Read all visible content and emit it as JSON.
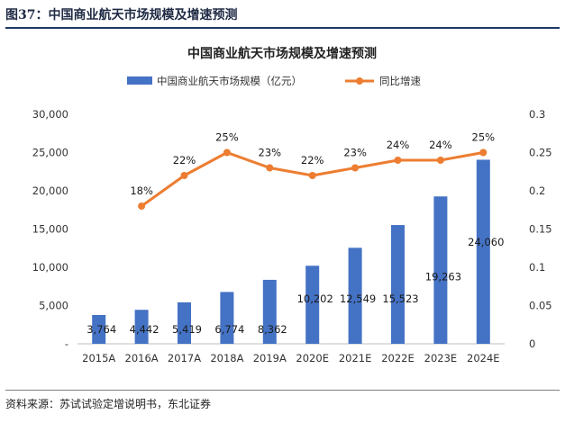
{
  "figure": {
    "label": "图37：中国商业航天市场规模及增速预测",
    "source": "资料来源：苏试试验定增说明书，东北证券"
  },
  "colors": {
    "bar": "#4472c4",
    "line": "#ed7d31",
    "rule": "#1f3864"
  },
  "chart_data": {
    "type": "bar",
    "title": "中国商业航天市场规模及增速预测",
    "categories": [
      "2015A",
      "2016A",
      "2017A",
      "2018A",
      "2019A",
      "2020E",
      "2021E",
      "2022E",
      "2023E",
      "2024E"
    ],
    "series": [
      {
        "name": "中国商业航天市场规模（亿元）",
        "type": "bar",
        "axis": "left",
        "values": [
          3764,
          4442,
          5419,
          6774,
          8362,
          10202,
          12549,
          15523,
          19263,
          24060
        ],
        "labels": [
          "3,764",
          "4,442",
          "5,419",
          "6,774",
          "8,362",
          "10,202",
          "12,549",
          "15,523",
          "19,263",
          "24,060"
        ]
      },
      {
        "name": "同比增速",
        "type": "line",
        "axis": "right",
        "values": [
          null,
          0.18,
          0.22,
          0.25,
          0.23,
          0.22,
          0.23,
          0.24,
          0.24,
          0.25
        ],
        "labels": [
          "",
          "18%",
          "22%",
          "25%",
          "23%",
          "22%",
          "23%",
          "24%",
          "24%",
          "25%"
        ]
      }
    ],
    "ylim": [
      0,
      30000
    ],
    "y2lim": [
      0,
      0.3
    ],
    "y_ticks": [
      "-",
      "5,000",
      "10,000",
      "15,000",
      "20,000",
      "25,000",
      "30,000"
    ],
    "y2_ticks": [
      "0",
      "0.05",
      "0.1",
      "0.15",
      "0.2",
      "0.25",
      "0.3"
    ],
    "grid": false,
    "legend_position": "top"
  }
}
